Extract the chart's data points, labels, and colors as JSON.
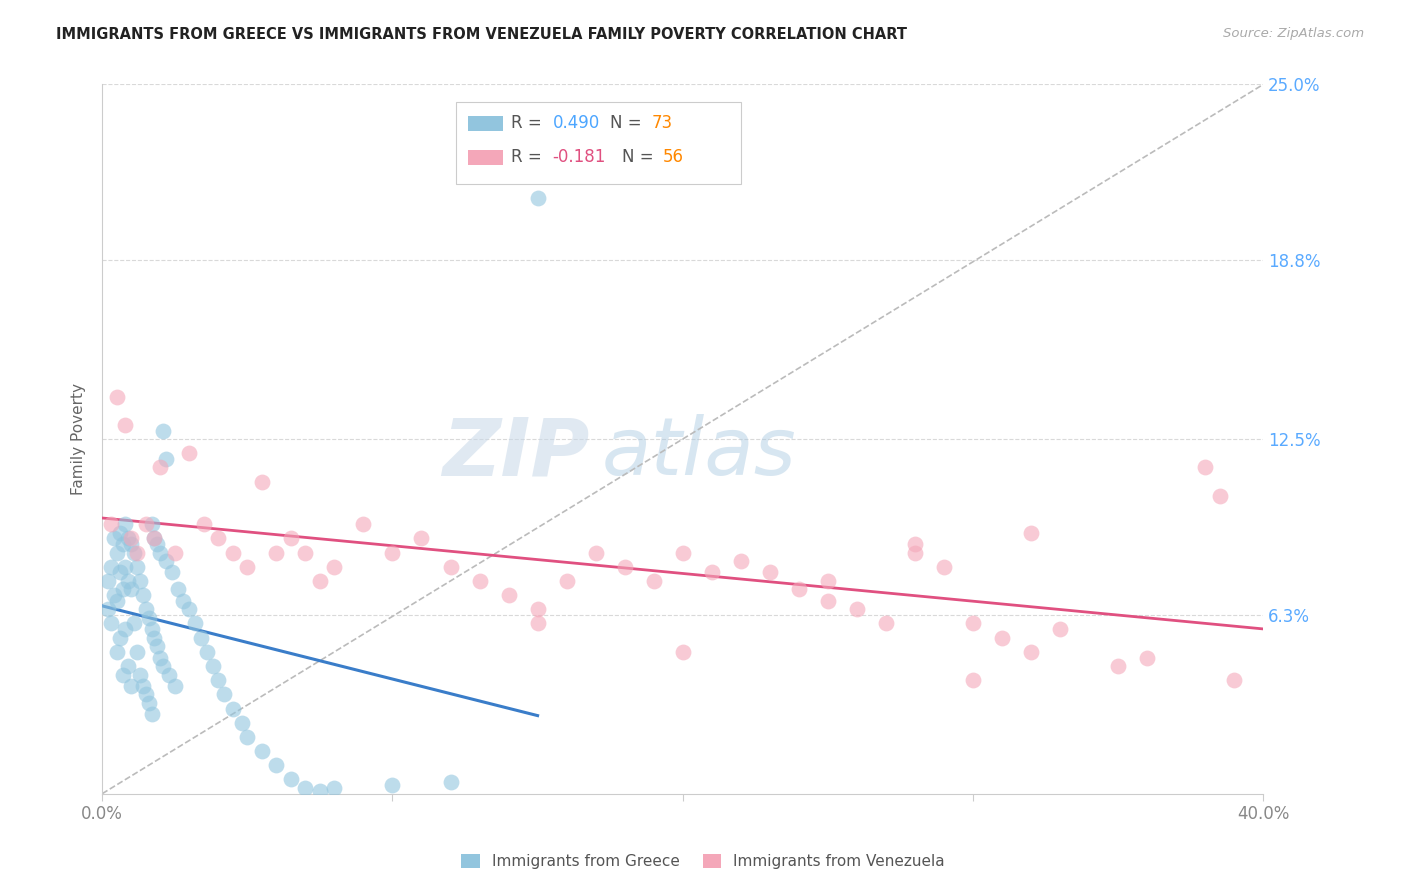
{
  "title": "IMMIGRANTS FROM GREECE VS IMMIGRANTS FROM VENEZUELA FAMILY POVERTY CORRELATION CHART",
  "source": "Source: ZipAtlas.com",
  "ylabel": "Family Poverty",
  "xlim": [
    0.0,
    0.4
  ],
  "ylim": [
    0.0,
    0.25
  ],
  "ytick_vals": [
    0.063,
    0.125,
    0.188,
    0.25
  ],
  "ytick_labels": [
    "6.3%",
    "12.5%",
    "18.8%",
    "25.0%"
  ],
  "xtick_vals": [
    0.0,
    0.1,
    0.2,
    0.3,
    0.4
  ],
  "xtick_labels": [
    "0.0%",
    "",
    "",
    "",
    "40.0%"
  ],
  "greece_color": "#92c5de",
  "venezuela_color": "#f4a7b9",
  "greece_line_color": "#3a7dc9",
  "venezuela_line_color": "#e05080",
  "greece_R": 0.49,
  "greece_N": 73,
  "venezuela_R": -0.181,
  "venezuela_N": 56,
  "background_color": "#ffffff",
  "grid_color": "#d0d0d0",
  "watermark_color": "#d8e8f5",
  "title_color": "#222222",
  "source_color": "#aaaaaa",
  "ylabel_color": "#666666",
  "tick_color": "#888888",
  "right_tick_color": "#5aaaff",
  "legend_R_color_blue": "#4da6ff",
  "legend_R_color_pink": "#e05080",
  "legend_N_color": "#ff8800",
  "greece_scatter_x": [
    0.002,
    0.002,
    0.003,
    0.003,
    0.004,
    0.004,
    0.005,
    0.005,
    0.005,
    0.006,
    0.006,
    0.006,
    0.007,
    0.007,
    0.007,
    0.008,
    0.008,
    0.008,
    0.009,
    0.009,
    0.009,
    0.01,
    0.01,
    0.01,
    0.011,
    0.011,
    0.012,
    0.012,
    0.013,
    0.013,
    0.014,
    0.014,
    0.015,
    0.015,
    0.016,
    0.016,
    0.017,
    0.017,
    0.018,
    0.018,
    0.019,
    0.02,
    0.02,
    0.021,
    0.022,
    0.023,
    0.024,
    0.025,
    0.026,
    0.028,
    0.03,
    0.032,
    0.034,
    0.036,
    0.038,
    0.04,
    0.042,
    0.045,
    0.048,
    0.05,
    0.055,
    0.06,
    0.065,
    0.07,
    0.075,
    0.08,
    0.1,
    0.12,
    0.15,
    0.017,
    0.019,
    0.021,
    0.022
  ],
  "greece_scatter_y": [
    0.075,
    0.065,
    0.08,
    0.06,
    0.09,
    0.07,
    0.085,
    0.068,
    0.05,
    0.092,
    0.078,
    0.055,
    0.088,
    0.072,
    0.042,
    0.095,
    0.08,
    0.058,
    0.09,
    0.075,
    0.045,
    0.088,
    0.072,
    0.038,
    0.085,
    0.06,
    0.08,
    0.05,
    0.075,
    0.042,
    0.07,
    0.038,
    0.065,
    0.035,
    0.062,
    0.032,
    0.058,
    0.028,
    0.055,
    0.09,
    0.052,
    0.048,
    0.085,
    0.045,
    0.082,
    0.042,
    0.078,
    0.038,
    0.072,
    0.068,
    0.065,
    0.06,
    0.055,
    0.05,
    0.045,
    0.04,
    0.035,
    0.03,
    0.025,
    0.02,
    0.015,
    0.01,
    0.005,
    0.002,
    0.001,
    0.002,
    0.003,
    0.004,
    0.21,
    0.095,
    0.088,
    0.128,
    0.118
  ],
  "venezuela_scatter_x": [
    0.003,
    0.005,
    0.008,
    0.01,
    0.012,
    0.015,
    0.018,
    0.02,
    0.025,
    0.03,
    0.035,
    0.04,
    0.045,
    0.05,
    0.055,
    0.06,
    0.065,
    0.07,
    0.075,
    0.08,
    0.09,
    0.1,
    0.11,
    0.12,
    0.13,
    0.14,
    0.15,
    0.16,
    0.17,
    0.18,
    0.19,
    0.2,
    0.21,
    0.22,
    0.23,
    0.24,
    0.25,
    0.26,
    0.27,
    0.28,
    0.29,
    0.3,
    0.31,
    0.32,
    0.33,
    0.35,
    0.36,
    0.38,
    0.385,
    0.39,
    0.28,
    0.32,
    0.15,
    0.2,
    0.25,
    0.3
  ],
  "venezuela_scatter_y": [
    0.095,
    0.14,
    0.13,
    0.09,
    0.085,
    0.095,
    0.09,
    0.115,
    0.085,
    0.12,
    0.095,
    0.09,
    0.085,
    0.08,
    0.11,
    0.085,
    0.09,
    0.085,
    0.075,
    0.08,
    0.095,
    0.085,
    0.09,
    0.08,
    0.075,
    0.07,
    0.065,
    0.075,
    0.085,
    0.08,
    0.075,
    0.085,
    0.078,
    0.082,
    0.078,
    0.072,
    0.068,
    0.065,
    0.06,
    0.085,
    0.08,
    0.06,
    0.055,
    0.05,
    0.058,
    0.045,
    0.048,
    0.115,
    0.105,
    0.04,
    0.088,
    0.092,
    0.06,
    0.05,
    0.075,
    0.04
  ],
  "dashed_line_x": [
    0.0,
    0.4
  ],
  "dashed_line_y": [
    0.0,
    0.25
  ]
}
